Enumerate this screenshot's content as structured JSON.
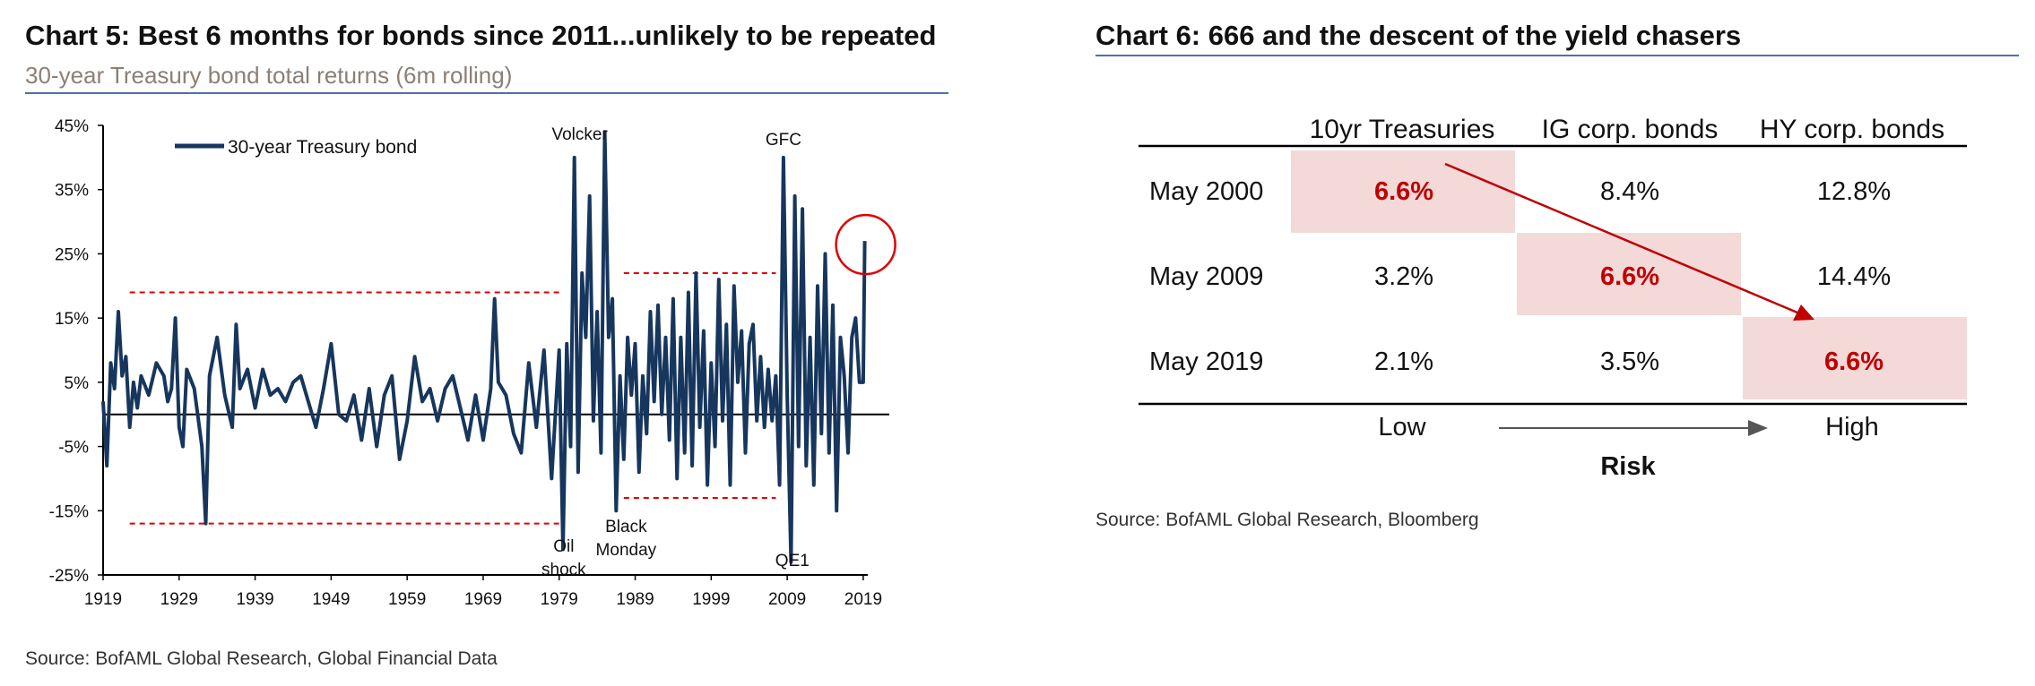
{
  "left_chart": {
    "title": "Chart 5:  Best 6 months for bonds since 2011...unlikely to be repeated",
    "subtitle": "30-year Treasury bond total returns (6m rolling)",
    "source": "Source:  BofAML Global Research, Global Financial Data"
  },
  "right_chart": {
    "title": "Chart 6: 666 and the descent of the yield chasers",
    "source": "Source:  BofAML Global Research, Bloomberg"
  },
  "chart_data": [
    {
      "type": "line",
      "title": "Chart 5:  Best 6 months for bonds since 2011...unlikely to be repeated",
      "subtitle": "30-year Treasury bond total returns (6m rolling)",
      "legend": "30-year Treasury bond",
      "legend_position": "top-left",
      "ylim": [
        -25,
        45
      ],
      "y_ticks": [
        45,
        35,
        25,
        15,
        5,
        -5,
        -15,
        -25
      ],
      "y_tick_labels": [
        "45%",
        "35%",
        "25%",
        "15%",
        "5%",
        "-5%",
        "-15%",
        "-25%"
      ],
      "x_ticks": [
        "1919",
        "1929",
        "1939",
        "1949",
        "1959",
        "1969",
        "1979",
        "1989",
        "1999",
        "2009",
        "2019"
      ],
      "xlim": [
        1919,
        2019.6
      ],
      "annotations": [
        {
          "text": "Volcker",
          "x": 1981.7
        },
        {
          "text": "GFC",
          "x": 2008.5
        },
        {
          "text": "Oil",
          "x": 1979.6
        },
        {
          "text": "shock",
          "x": 1979.6
        },
        {
          "text": "Black",
          "x": 1987.8
        },
        {
          "text": "Monday",
          "x": 1987.8
        },
        {
          "text": "QE1",
          "x": 2009.2
        }
      ],
      "reference_lines": [
        {
          "from": 1922.5,
          "to": 1979.5,
          "value": 19
        },
        {
          "from": 1922.5,
          "to": 1979.5,
          "value": -17
        },
        {
          "from": 1987.5,
          "to": 2007.5,
          "value": 22
        },
        {
          "from": 1987.5,
          "to": 2007.5,
          "value": -13
        }
      ],
      "highlight": {
        "x": 2019.2,
        "value": 27,
        "color": "#e00000"
      },
      "series": [
        {
          "name": "30-year Treasury bond",
          "x": [
            1919.0,
            1919.5,
            1920.0,
            1920.5,
            1921.0,
            1921.5,
            1922.0,
            1922.5,
            1923.0,
            1923.5,
            1924.0,
            1925.0,
            1926.0,
            1927.0,
            1927.5,
            1928.0,
            1928.5,
            1929.0,
            1929.5,
            1930.0,
            1931.0,
            1932.0,
            1932.5,
            1933.0,
            1934.0,
            1935.0,
            1936.0,
            1936.5,
            1937.0,
            1938.0,
            1939.0,
            1940.0,
            1941.0,
            1942.0,
            1943.0,
            1944.0,
            1945.0,
            1946.0,
            1947.0,
            1948.0,
            1949.0,
            1950.0,
            1951.0,
            1952.0,
            1953.0,
            1954.0,
            1955.0,
            1956.0,
            1957.0,
            1958.0,
            1959.0,
            1960.0,
            1961.0,
            1962.0,
            1963.0,
            1964.0,
            1965.0,
            1966.0,
            1967.0,
            1968.0,
            1969.0,
            1970.0,
            1970.5,
            1971.0,
            1972.0,
            1973.0,
            1974.0,
            1975.0,
            1976.0,
            1977.0,
            1978.0,
            1979.0,
            1979.5,
            1980.0,
            1980.5,
            1981.0,
            1981.5,
            1982.0,
            1982.5,
            1983.0,
            1983.5,
            1984.0,
            1984.5,
            1985.0,
            1985.5,
            1986.0,
            1986.5,
            1987.0,
            1987.5,
            1988.0,
            1988.5,
            1989.0,
            1989.5,
            1990.0,
            1990.5,
            1991.0,
            1991.5,
            1992.0,
            1992.5,
            1993.0,
            1993.5,
            1994.0,
            1994.5,
            1995.0,
            1995.5,
            1996.0,
            1996.5,
            1997.0,
            1997.5,
            1998.0,
            1998.5,
            1999.0,
            1999.5,
            2000.0,
            2000.5,
            2001.0,
            2001.5,
            2002.0,
            2002.5,
            2003.0,
            2003.5,
            2004.0,
            2004.5,
            2005.0,
            2005.5,
            2006.0,
            2006.5,
            2007.0,
            2007.5,
            2008.0,
            2008.5,
            2009.0,
            2009.5,
            2010.0,
            2010.5,
            2011.0,
            2011.5,
            2012.0,
            2012.5,
            2013.0,
            2013.5,
            2014.0,
            2014.5,
            2015.0,
            2015.5,
            2016.0,
            2016.5,
            2017.0,
            2017.5,
            2018.0,
            2018.5,
            2019.0,
            2019.2
          ],
          "values": [
            2,
            -8,
            8,
            4,
            16,
            6,
            9,
            -2,
            5,
            1,
            6,
            3,
            8,
            6,
            2,
            4,
            15,
            -2,
            -5,
            7,
            4,
            -5,
            -17,
            6,
            12,
            3,
            -2,
            14,
            4,
            7,
            1,
            7,
            3,
            4,
            2,
            5,
            6,
            2,
            -2,
            4,
            11,
            0,
            -1,
            3,
            -4,
            4,
            -5,
            3,
            6,
            -7,
            -1,
            9,
            2,
            4,
            -1,
            4,
            6,
            1,
            -4,
            3,
            -4,
            4,
            18,
            5,
            3,
            -3,
            -6,
            8,
            -2,
            10,
            -10,
            10,
            -21,
            11,
            -5,
            40,
            -9,
            22,
            12,
            34,
            -1,
            16,
            -6,
            44,
            12,
            18,
            -15,
            6,
            -7,
            12,
            3,
            11,
            -9,
            6,
            -3,
            16,
            2,
            17,
            0,
            12,
            -4,
            18,
            -10,
            12,
            -6,
            19,
            -8,
            22,
            -2,
            13,
            -11,
            8,
            -5,
            21,
            -1,
            14,
            -11,
            20,
            5,
            13,
            -6,
            11,
            14,
            -1,
            9,
            -2,
            7,
            -1,
            6,
            -11,
            40,
            3,
            -23,
            34,
            -5,
            32,
            -8,
            12,
            -11,
            20,
            -3,
            25,
            -6,
            17,
            -15,
            12,
            6,
            -6,
            12,
            15,
            5,
            5,
            27
          ]
        }
      ]
    },
    {
      "type": "table",
      "title": "Chart 6: 666 and the descent of the yield chasers",
      "columns": [
        "10yr Treasuries",
        "IG corp. bonds",
        "HY corp. bonds"
      ],
      "rows": [
        {
          "label": "May 2000",
          "values": [
            "6.6%",
            "8.4%",
            "12.8%"
          ],
          "highlight_col": 0
        },
        {
          "label": "May 2009",
          "values": [
            "3.2%",
            "6.6%",
            "14.4%"
          ],
          "highlight_col": 1
        },
        {
          "label": "May 2019",
          "values": [
            "2.1%",
            "3.5%",
            "6.6%"
          ],
          "highlight_col": 2
        }
      ],
      "risk_axis": {
        "low": "Low",
        "high": "High",
        "label": "Risk"
      },
      "highlight_color": "#f4d9d9",
      "accent_color": "#c00000"
    }
  ]
}
